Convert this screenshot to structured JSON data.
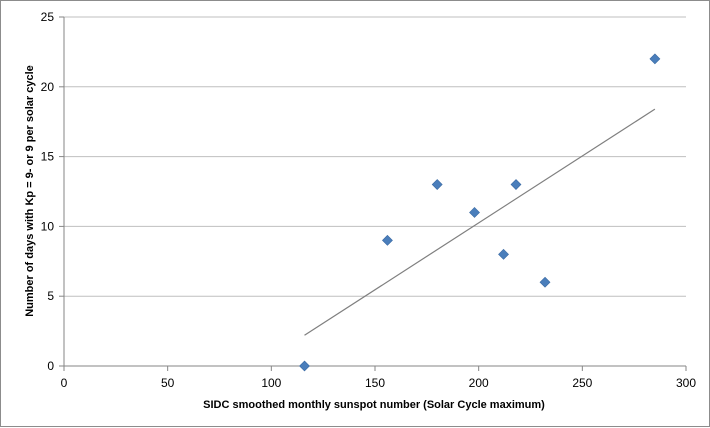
{
  "chart_data": {
    "type": "scatter",
    "title": "",
    "xlabel": "SIDC smoothed monthly sunspot number (Solar Cycle maximum)",
    "ylabel": "Number of days with Kp = 9- or 9 per solar cycle",
    "xlim": [
      0,
      300
    ],
    "ylim": [
      0,
      25
    ],
    "xticks": [
      0,
      50,
      100,
      150,
      200,
      250,
      300
    ],
    "yticks": [
      0,
      5,
      10,
      15,
      20,
      25
    ],
    "grid": {
      "horizontal": true,
      "vertical": false
    },
    "legend": "none",
    "marker": "diamond",
    "colors": {
      "marker": "#4a7ebb",
      "trendline": "#7f7f7f",
      "grid": "#bfbfbf",
      "axis": "#868686"
    },
    "points": [
      {
        "x": 116,
        "y": 0
      },
      {
        "x": 156,
        "y": 9
      },
      {
        "x": 180,
        "y": 13
      },
      {
        "x": 198,
        "y": 11
      },
      {
        "x": 212,
        "y": 8
      },
      {
        "x": 218,
        "y": 13
      },
      {
        "x": 232,
        "y": 6
      },
      {
        "x": 285,
        "y": 22
      }
    ],
    "trendline": {
      "type": "linear",
      "x_start": 116,
      "y_start": 2.2,
      "x_end": 285,
      "y_end": 18.4
    }
  }
}
